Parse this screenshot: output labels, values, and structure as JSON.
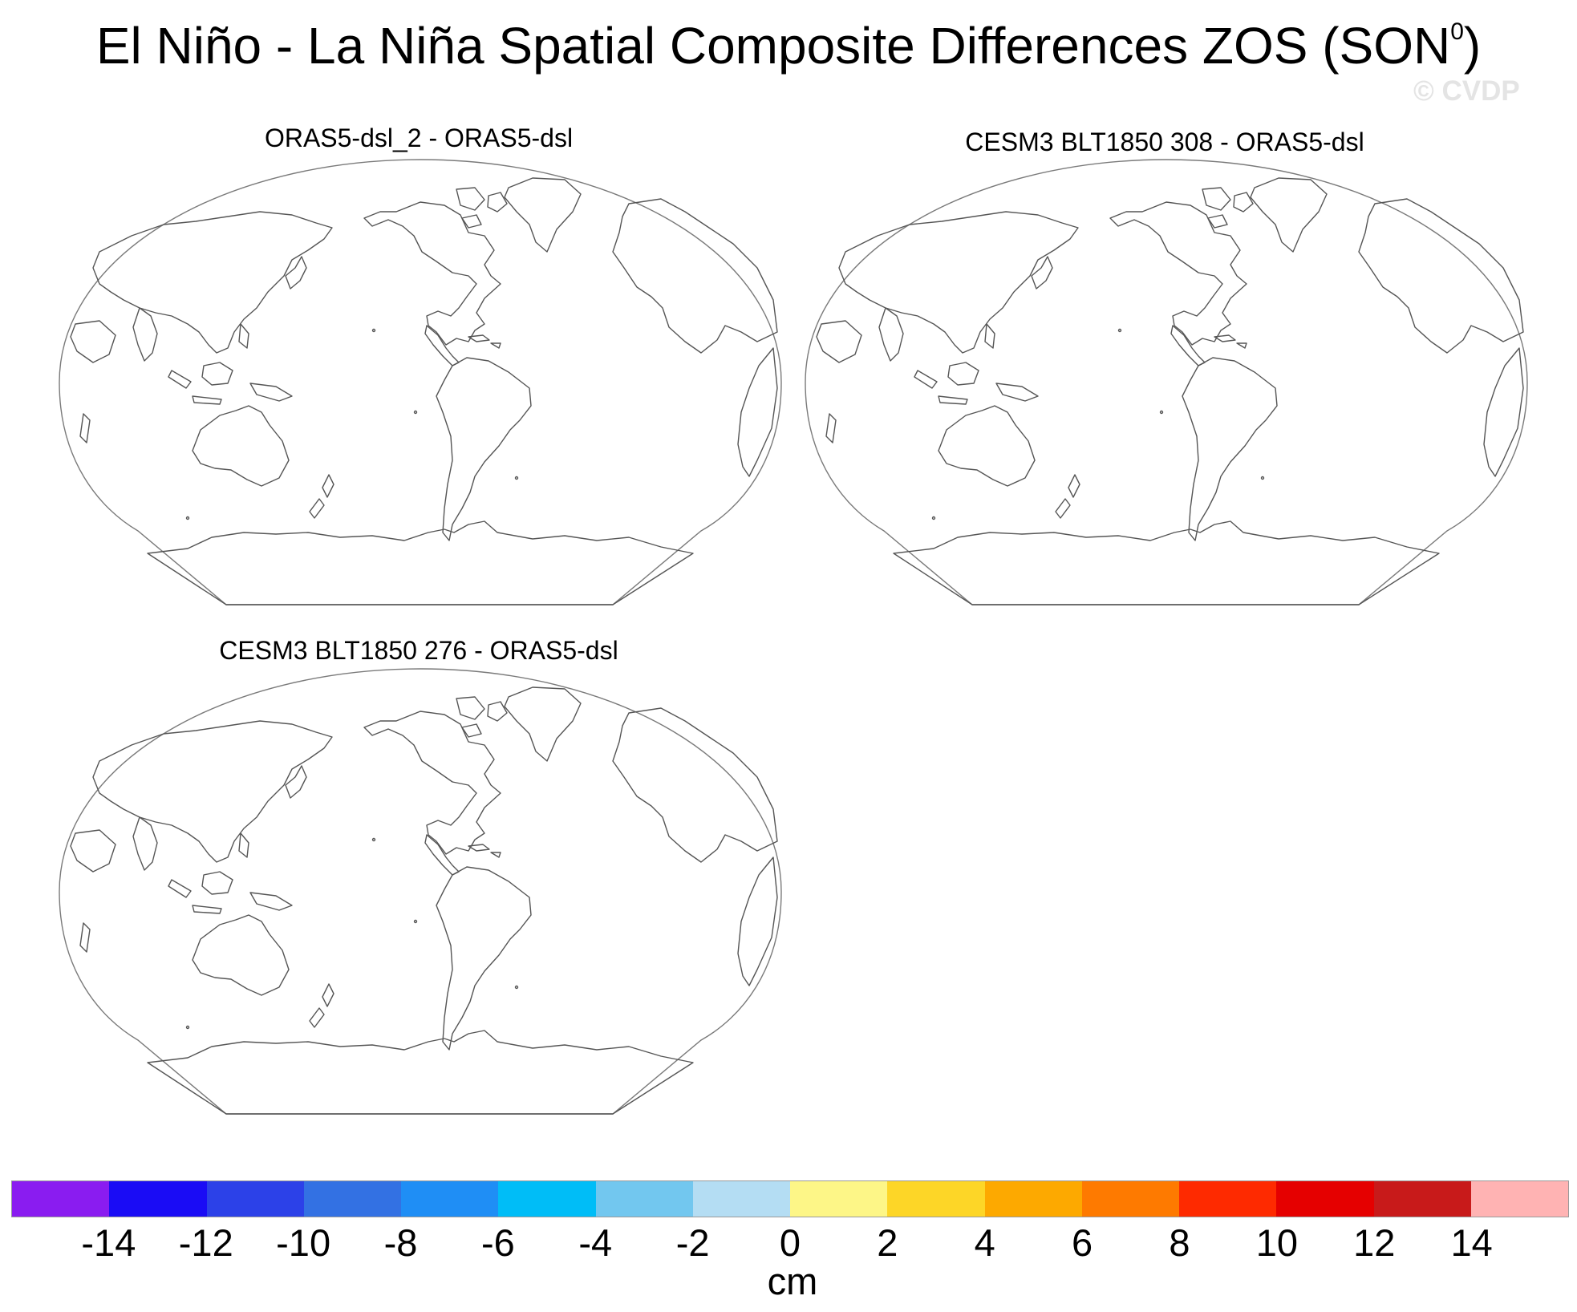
{
  "figure": {
    "title": "El Niño - La Niña Spatial Composite Differences ZOS (SON",
    "title_superscript": "0",
    "title_suffix": ")",
    "watermark": "© CVDP"
  },
  "panels": [
    {
      "title": "ORAS5-dsl_2 - ORAS5-dsl"
    },
    {
      "title": "CESM3 BLT1850 308 - ORAS5-dsl"
    },
    {
      "title": "CESM3 BLT1850 276 - ORAS5-dsl"
    }
  ],
  "colorbar": {
    "units": "cm",
    "colors": [
      "#8a1cf0",
      "#1a0cf5",
      "#2c41e8",
      "#3371e3",
      "#1f8ef5",
      "#00bdf7",
      "#72c7ef",
      "#b4ddf3",
      "#fdf687",
      "#fdd627",
      "#fda900",
      "#fe7a00",
      "#fe2a00",
      "#e50000",
      "#c81a1a",
      "#ffb3b3"
    ],
    "tick_labels": [
      "-14",
      "-12",
      "-10",
      "-8",
      "-6",
      "-4",
      "-2",
      "0",
      "2",
      "4",
      "6",
      "8",
      "10",
      "12",
      "14"
    ]
  }
}
